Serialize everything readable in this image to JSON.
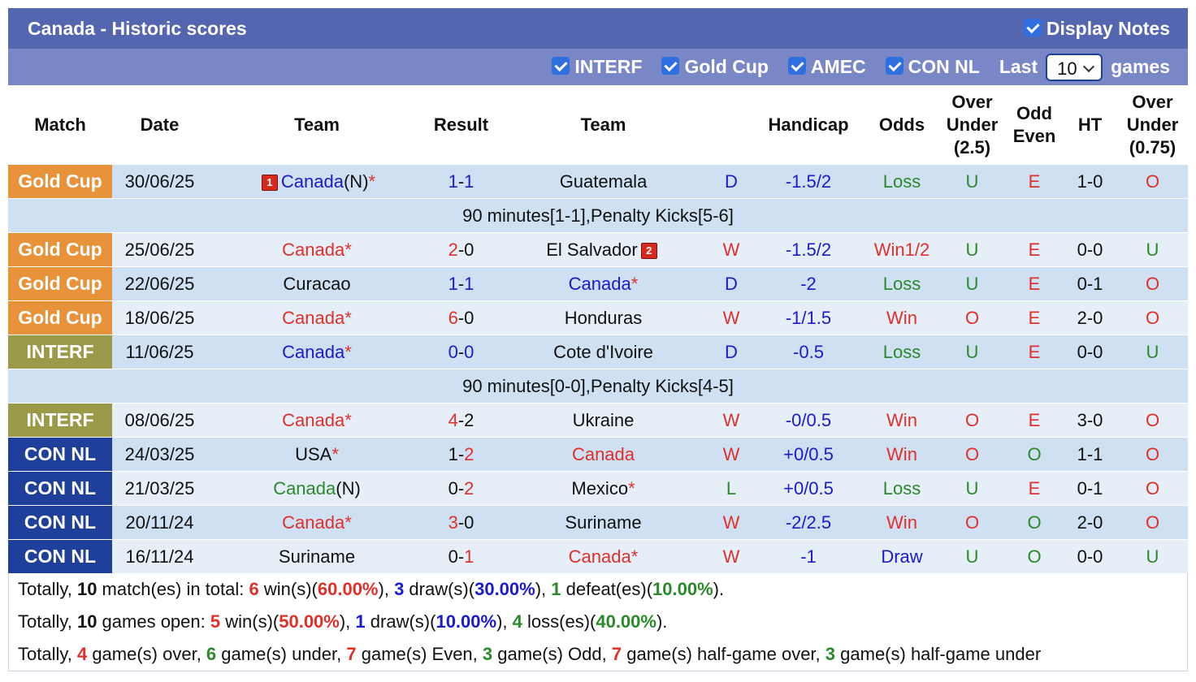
{
  "header": {
    "title": "Canada - Historic scores",
    "display_notes": "Display Notes"
  },
  "filters": {
    "items": [
      "INTERF",
      "Gold Cup",
      "AMEC",
      "CON NL"
    ],
    "last_label": "Last",
    "last_value": "10",
    "games_label": "games"
  },
  "table": {
    "columns": [
      "Match",
      "Date",
      "Team",
      "Result",
      "Team",
      "Handicap",
      "Odds",
      "Over Under (2.5)",
      "Odd Even",
      "HT",
      "Over Under (0.75)"
    ],
    "rows": [
      {
        "match": "Gold Cup",
        "match_color": "#e8923a",
        "date": "30/06/25",
        "home": "Canada(N)*",
        "home_color": "#1a1ad0",
        "home_card": "1",
        "result": "1-1",
        "away": "Guatemala",
        "away_color": "#111111",
        "outcome": "D",
        "outcome_color": "#1a1ad0",
        "handicap": "-1.5/2",
        "odds": "Loss",
        "odds_color": "#2a8a2a",
        "ou": "U",
        "ou_color": "#2a8a2a",
        "oe": "E",
        "oe_color": "#e0302a",
        "ht": "1-0",
        "ou075": "O",
        "ou075_color": "#e0302a",
        "note": "90 minutes[1-1],Penalty Kicks[5-6]"
      },
      {
        "match": "Gold Cup",
        "match_color": "#e8923a",
        "date": "25/06/25",
        "home": "Canada*",
        "home_color": "#e0302a",
        "result": "2-0",
        "away": "El Salvador",
        "away_color": "#111111",
        "away_card": "2",
        "outcome": "W",
        "outcome_color": "#e0302a",
        "handicap": "-1.5/2",
        "odds": "Win1/2",
        "odds_color": "#e0302a",
        "ou": "U",
        "ou_color": "#2a8a2a",
        "oe": "E",
        "oe_color": "#e0302a",
        "ht": "0-0",
        "ou075": "U",
        "ou075_color": "#2a8a2a"
      },
      {
        "match": "Gold Cup",
        "match_color": "#e8923a",
        "date": "22/06/25",
        "home": "Curacao",
        "home_color": "#111111",
        "result": "1-1",
        "away": "Canada*",
        "away_color": "#1a1ad0",
        "outcome": "D",
        "outcome_color": "#1a1ad0",
        "handicap": "-2",
        "odds": "Loss",
        "odds_color": "#2a8a2a",
        "ou": "U",
        "ou_color": "#2a8a2a",
        "oe": "E",
        "oe_color": "#e0302a",
        "ht": "0-1",
        "ou075": "O",
        "ou075_color": "#e0302a"
      },
      {
        "match": "Gold Cup",
        "match_color": "#e8923a",
        "date": "18/06/25",
        "home": "Canada*",
        "home_color": "#e0302a",
        "result": "6-0",
        "away": "Honduras",
        "away_color": "#111111",
        "outcome": "W",
        "outcome_color": "#e0302a",
        "handicap": "-1/1.5",
        "odds": "Win",
        "odds_color": "#e0302a",
        "ou": "O",
        "ou_color": "#e0302a",
        "oe": "E",
        "oe_color": "#e0302a",
        "ht": "2-0",
        "ou075": "O",
        "ou075_color": "#e0302a"
      },
      {
        "match": "INTERF",
        "match_color": "#9a9a48",
        "date": "11/06/25",
        "home": "Canada*",
        "home_color": "#1a1ad0",
        "result": "0-0",
        "away": "Cote d'Ivoire",
        "away_color": "#111111",
        "outcome": "D",
        "outcome_color": "#1a1ad0",
        "handicap": "-0.5",
        "odds": "Loss",
        "odds_color": "#2a8a2a",
        "ou": "U",
        "ou_color": "#2a8a2a",
        "oe": "E",
        "oe_color": "#e0302a",
        "ht": "0-0",
        "ou075": "U",
        "ou075_color": "#2a8a2a",
        "note": "90 minutes[0-0],Penalty Kicks[4-5]"
      },
      {
        "match": "INTERF",
        "match_color": "#9a9a48",
        "date": "08/06/25",
        "home": "Canada*",
        "home_color": "#e0302a",
        "result": "4-2",
        "away": "Ukraine",
        "away_color": "#111111",
        "outcome": "W",
        "outcome_color": "#e0302a",
        "handicap": "-0/0.5",
        "odds": "Win",
        "odds_color": "#e0302a",
        "ou": "O",
        "ou_color": "#e0302a",
        "oe": "E",
        "oe_color": "#e0302a",
        "ht": "3-0",
        "ou075": "O",
        "ou075_color": "#e0302a"
      },
      {
        "match": "CON NL",
        "match_color": "#1e3f9a",
        "date": "24/03/25",
        "home": "USA*",
        "home_color": "#111111",
        "result": "1-2",
        "away": "Canada",
        "away_color": "#e0302a",
        "outcome": "W",
        "outcome_color": "#e0302a",
        "handicap": "+0/0.5",
        "odds": "Win",
        "odds_color": "#e0302a",
        "ou": "O",
        "ou_color": "#e0302a",
        "oe": "O",
        "oe_color": "#2a8a2a",
        "ht": "1-1",
        "ou075": "O",
        "ou075_color": "#e0302a"
      },
      {
        "match": "CON NL",
        "match_color": "#1e3f9a",
        "date": "21/03/25",
        "home": "Canada(N)",
        "home_color": "#2a8a2a",
        "result": "0-2",
        "away": "Mexico*",
        "away_color": "#111111",
        "outcome": "L",
        "outcome_color": "#2a8a2a",
        "handicap": "+0/0.5",
        "odds": "Loss",
        "odds_color": "#2a8a2a",
        "ou": "U",
        "ou_color": "#2a8a2a",
        "oe": "E",
        "oe_color": "#e0302a",
        "ht": "0-1",
        "ou075": "O",
        "ou075_color": "#e0302a"
      },
      {
        "match": "CON NL",
        "match_color": "#1e3f9a",
        "date": "20/11/24",
        "home": "Canada*",
        "home_color": "#e0302a",
        "result": "3-0",
        "away": "Suriname",
        "away_color": "#111111",
        "outcome": "W",
        "outcome_color": "#e0302a",
        "handicap": "-2/2.5",
        "odds": "Win",
        "odds_color": "#e0302a",
        "ou": "O",
        "ou_color": "#e0302a",
        "oe": "O",
        "oe_color": "#2a8a2a",
        "ht": "2-0",
        "ou075": "O",
        "ou075_color": "#e0302a"
      },
      {
        "match": "CON NL",
        "match_color": "#1e3f9a",
        "date": "16/11/24",
        "home": "Suriname",
        "home_color": "#111111",
        "result": "0-1",
        "away": "Canada*",
        "away_color": "#e0302a",
        "outcome": "W",
        "outcome_color": "#e0302a",
        "handicap": "-1",
        "odds": "Draw",
        "odds_color": "#1a1ad0",
        "ou": "U",
        "ou_color": "#2a8a2a",
        "oe": "O",
        "oe_color": "#2a8a2a",
        "ht": "0-0",
        "ou075": "U",
        "ou075_color": "#2a8a2a"
      }
    ]
  },
  "summary": [
    [
      {
        "t": "Totally, "
      },
      {
        "t": "10",
        "c": "#111111"
      },
      {
        "t": " match(es) in total: "
      },
      {
        "t": "6",
        "c": "#e0302a"
      },
      {
        "t": " win(s)("
      },
      {
        "t": "60.00%",
        "c": "#e0302a"
      },
      {
        "t": "), "
      },
      {
        "t": "3",
        "c": "#1a1ad0"
      },
      {
        "t": " draw(s)("
      },
      {
        "t": "30.00%",
        "c": "#1a1ad0"
      },
      {
        "t": "), "
      },
      {
        "t": "1",
        "c": "#2a8a2a"
      },
      {
        "t": " defeat(es)("
      },
      {
        "t": "10.00%",
        "c": "#2a8a2a"
      },
      {
        "t": ")."
      }
    ],
    [
      {
        "t": "Totally, "
      },
      {
        "t": "10",
        "c": "#111111"
      },
      {
        "t": " games open: "
      },
      {
        "t": "5",
        "c": "#e0302a"
      },
      {
        "t": " win(s)("
      },
      {
        "t": "50.00%",
        "c": "#e0302a"
      },
      {
        "t": "), "
      },
      {
        "t": "1",
        "c": "#1a1ad0"
      },
      {
        "t": " draw(s)("
      },
      {
        "t": "10.00%",
        "c": "#1a1ad0"
      },
      {
        "t": "), "
      },
      {
        "t": "4",
        "c": "#2a8a2a"
      },
      {
        "t": " loss(es)("
      },
      {
        "t": "40.00%",
        "c": "#2a8a2a"
      },
      {
        "t": ")."
      }
    ],
    [
      {
        "t": "Totally, "
      },
      {
        "t": "4",
        "c": "#e0302a"
      },
      {
        "t": " game(s) over, "
      },
      {
        "t": "6",
        "c": "#2a8a2a"
      },
      {
        "t": " game(s) under, "
      },
      {
        "t": "7",
        "c": "#e0302a"
      },
      {
        "t": " game(s) Even, "
      },
      {
        "t": "3",
        "c": "#2a8a2a"
      },
      {
        "t": " game(s) Odd, "
      },
      {
        "t": "7",
        "c": "#e0302a"
      },
      {
        "t": " game(s) half-game over, "
      },
      {
        "t": "3",
        "c": "#2a8a2a"
      },
      {
        "t": " game(s) half-game under"
      }
    ]
  ]
}
